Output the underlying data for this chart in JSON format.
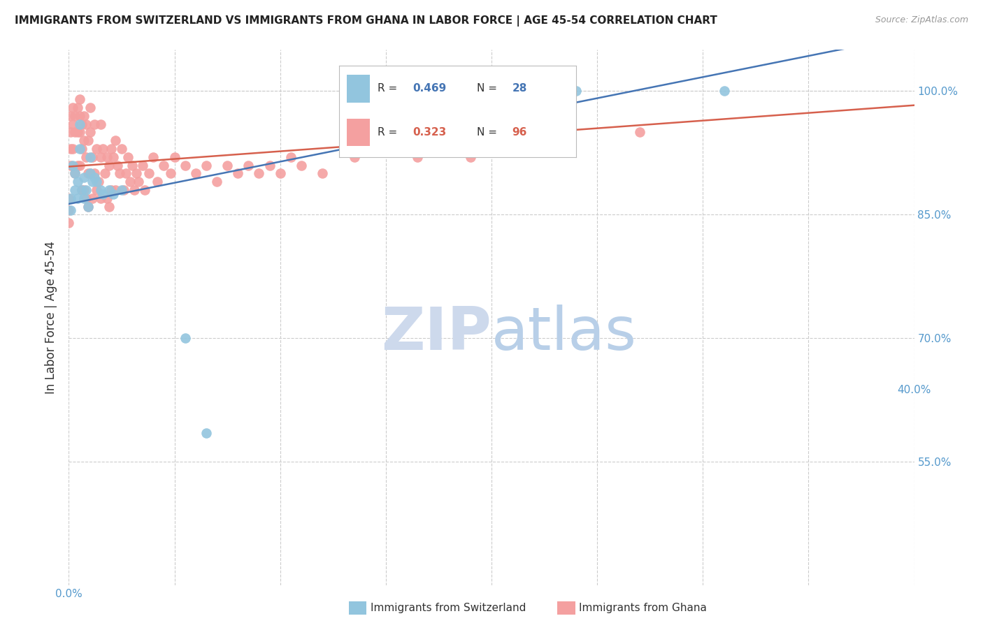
{
  "title": "IMMIGRANTS FROM SWITZERLAND VS IMMIGRANTS FROM GHANA IN LABOR FORCE | AGE 45-54 CORRELATION CHART",
  "source": "Source: ZipAtlas.com",
  "ylabel": "In Labor Force | Age 45-54",
  "xlim": [
    0.0,
    0.4
  ],
  "ylim": [
    0.4,
    1.05
  ],
  "ytick_positions": [
    0.55,
    0.7,
    0.85,
    1.0
  ],
  "ytick_labels": [
    "55.0%",
    "70.0%",
    "85.0%",
    "100.0%"
  ],
  "xtick_positions": [
    0.0,
    0.05,
    0.1,
    0.15,
    0.2,
    0.25,
    0.3,
    0.35,
    0.4
  ],
  "xtick_labels_left": [
    "0.0%",
    "",
    "",
    "",
    "",
    "",
    "",
    "",
    ""
  ],
  "xtick_labels_right": [
    "40.0%"
  ],
  "swiss_R": 0.469,
  "swiss_N": 28,
  "ghana_R": 0.323,
  "ghana_N": 96,
  "swiss_color": "#92c5de",
  "ghana_color": "#f4a0a0",
  "swiss_line_color": "#4575b4",
  "ghana_line_color": "#d6604d",
  "watermark_zip_color": "#cdd9ec",
  "watermark_atlas_color": "#b8cfe8",
  "tick_label_color": "#5599cc",
  "swiss_x": [
    0.001,
    0.001,
    0.002,
    0.003,
    0.003,
    0.004,
    0.004,
    0.005,
    0.005,
    0.006,
    0.007,
    0.007,
    0.008,
    0.009,
    0.01,
    0.01,
    0.011,
    0.012,
    0.013,
    0.015,
    0.016,
    0.019,
    0.021,
    0.025,
    0.055,
    0.065,
    0.24,
    0.31
  ],
  "swiss_y": [
    0.87,
    0.855,
    0.91,
    0.9,
    0.88,
    0.89,
    0.87,
    0.96,
    0.93,
    0.88,
    0.895,
    0.87,
    0.88,
    0.86,
    0.92,
    0.9,
    0.89,
    0.895,
    0.89,
    0.88,
    0.875,
    0.88,
    0.875,
    0.88,
    0.7,
    0.585,
    1.0,
    1.0
  ],
  "ghana_x": [
    0.0,
    0.0,
    0.0,
    0.001,
    0.001,
    0.001,
    0.001,
    0.002,
    0.002,
    0.002,
    0.003,
    0.003,
    0.003,
    0.004,
    0.004,
    0.004,
    0.005,
    0.005,
    0.005,
    0.005,
    0.006,
    0.006,
    0.006,
    0.007,
    0.007,
    0.007,
    0.008,
    0.008,
    0.008,
    0.009,
    0.009,
    0.009,
    0.01,
    0.01,
    0.01,
    0.011,
    0.011,
    0.012,
    0.012,
    0.013,
    0.013,
    0.014,
    0.015,
    0.015,
    0.015,
    0.016,
    0.017,
    0.018,
    0.018,
    0.019,
    0.019,
    0.02,
    0.02,
    0.021,
    0.022,
    0.022,
    0.023,
    0.024,
    0.025,
    0.026,
    0.027,
    0.028,
    0.029,
    0.03,
    0.031,
    0.032,
    0.033,
    0.035,
    0.036,
    0.038,
    0.04,
    0.042,
    0.045,
    0.048,
    0.05,
    0.055,
    0.06,
    0.065,
    0.07,
    0.075,
    0.08,
    0.085,
    0.09,
    0.095,
    0.1,
    0.105,
    0.11,
    0.12,
    0.135,
    0.15,
    0.165,
    0.18,
    0.19,
    0.21,
    0.23,
    0.27
  ],
  "ghana_y": [
    0.87,
    0.855,
    0.84,
    0.97,
    0.95,
    0.93,
    0.91,
    0.98,
    0.96,
    0.93,
    0.97,
    0.95,
    0.9,
    0.98,
    0.95,
    0.91,
    0.99,
    0.97,
    0.95,
    0.91,
    0.96,
    0.93,
    0.88,
    0.97,
    0.94,
    0.88,
    0.96,
    0.92,
    0.87,
    0.94,
    0.9,
    0.86,
    0.98,
    0.95,
    0.9,
    0.92,
    0.87,
    0.96,
    0.9,
    0.93,
    0.88,
    0.89,
    0.96,
    0.92,
    0.87,
    0.93,
    0.9,
    0.92,
    0.87,
    0.91,
    0.86,
    0.93,
    0.88,
    0.92,
    0.94,
    0.88,
    0.91,
    0.9,
    0.93,
    0.88,
    0.9,
    0.92,
    0.89,
    0.91,
    0.88,
    0.9,
    0.89,
    0.91,
    0.88,
    0.9,
    0.92,
    0.89,
    0.91,
    0.9,
    0.92,
    0.91,
    0.9,
    0.91,
    0.89,
    0.91,
    0.9,
    0.91,
    0.9,
    0.91,
    0.9,
    0.92,
    0.91,
    0.9,
    0.92,
    0.93,
    0.92,
    0.93,
    0.92,
    0.93,
    0.94,
    0.95
  ]
}
